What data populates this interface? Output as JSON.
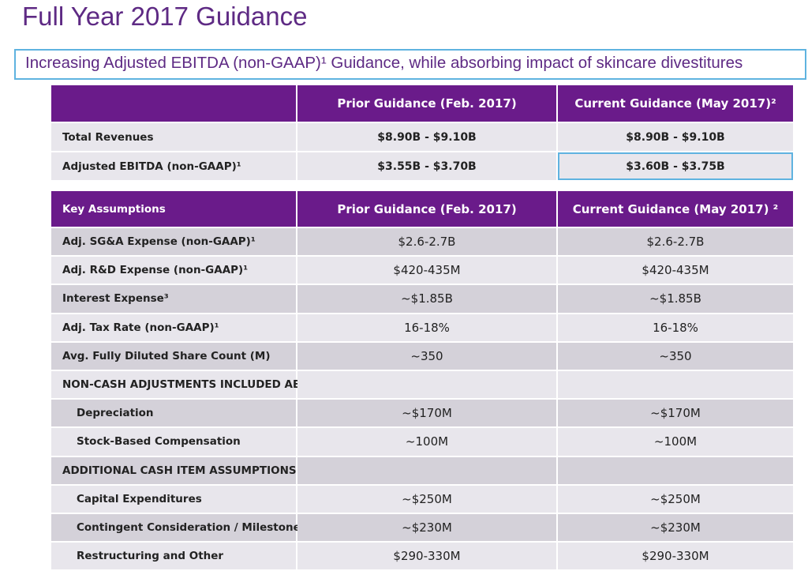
{
  "header": {
    "title": "Full Year 2017 Guidance",
    "subtitle": "Increasing Adjusted EBITDA (non-GAAP)¹ Guidance, while absorbing impact of skincare divestitures"
  },
  "summary_table": {
    "columns": [
      "Prior Guidance (Feb. 2017)",
      "Current Guidance (May 2017)²"
    ],
    "rows": [
      {
        "label": "Total Revenues",
        "values": [
          "$8.90B - $9.10B",
          "$8.90B - $9.10B"
        ]
      },
      {
        "label": "Adjusted EBITDA (non-GAAP)¹",
        "values": [
          "$3.55B - $3.70B",
          "$3.60B - $3.75B"
        ]
      }
    ]
  },
  "key_table": {
    "columns": [
      "Key Assumptions",
      "Prior Guidance (Feb. 2017)",
      "Current Guidance (May 2017) ²"
    ],
    "rows": [
      {
        "label": "Adj. SG&A Expense (non-GAAP)¹",
        "values": [
          "$2.6-2.7B",
          "$2.6-2.7B"
        ]
      },
      {
        "label": "Adj. R&D Expense (non-GAAP)¹",
        "values": [
          "$420-435M",
          "$420-435M"
        ]
      },
      {
        "label": "Interest Expense³",
        "values": [
          "~$1.85B",
          "~$1.85B"
        ]
      },
      {
        "label": "Adj. Tax Rate (non-GAAP)¹",
        "values": [
          "16-18%",
          "16-18%"
        ]
      },
      {
        "label": "Avg. Fully Diluted Share Count (M)",
        "values": [
          "~350",
          "~350"
        ]
      }
    ],
    "sections": [
      {
        "title": "NON-CASH ADJUSTMENTS INCLUDED ABOVE",
        "rows": [
          {
            "label": "Depreciation",
            "values": [
              "~$170M",
              "~$170M"
            ]
          },
          {
            "label": "Stock-Based Compensation",
            "values": [
              "~100M",
              "~100M"
            ]
          }
        ]
      },
      {
        "title": "ADDITIONAL CASH ITEM ASSUMPTIONS",
        "rows": [
          {
            "label": "Capital Expenditures",
            "values": [
              "~$250M",
              "~$250M"
            ]
          },
          {
            "label": "Contingent Consideration / Milestones",
            "values": [
              "~$230M",
              "~$230M"
            ]
          },
          {
            "label": "Restructuring and Other",
            "values": [
              "$290-330M",
              "$290-330M"
            ]
          }
        ]
      }
    ]
  }
}
